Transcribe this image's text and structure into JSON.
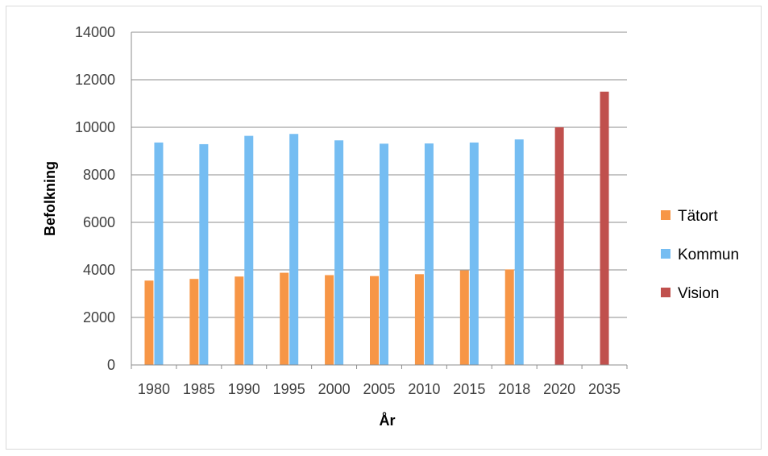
{
  "chart_data": {
    "type": "bar",
    "title": "",
    "xlabel": "År",
    "ylabel": "Befolkning",
    "ylim": [
      0,
      14000
    ],
    "y_ticks": [
      0,
      2000,
      4000,
      6000,
      8000,
      10000,
      12000,
      14000
    ],
    "grid": true,
    "legend_position": "right",
    "categories": [
      "1980",
      "1985",
      "1990",
      "1995",
      "2000",
      "2005",
      "2010",
      "2015",
      "2018",
      "2020",
      "2035"
    ],
    "series": [
      {
        "name": "Tätort",
        "color": "#f79646",
        "values": [
          3550,
          3620,
          3720,
          3880,
          3780,
          3740,
          3820,
          3980,
          4020,
          null,
          null
        ]
      },
      {
        "name": "Kommun",
        "color": "#75bdf2",
        "values": [
          9360,
          9290,
          9640,
          9720,
          9450,
          9310,
          9320,
          9360,
          9490,
          null,
          null
        ]
      },
      {
        "name": "Vision",
        "color": "#c0504d",
        "values": [
          null,
          null,
          null,
          null,
          null,
          null,
          null,
          null,
          null,
          10000,
          11500
        ]
      }
    ]
  }
}
